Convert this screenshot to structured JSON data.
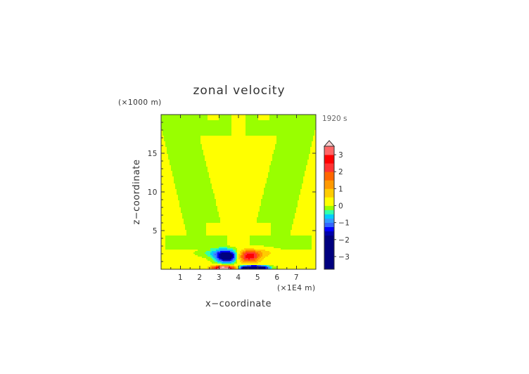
{
  "chart_data": {
    "type": "heatmap",
    "title": "zonal velocity",
    "xlabel": "x−coordinate",
    "ylabel": "z−coordinate",
    "x_unit": "(×1E4 m)",
    "y_unit": "(×1000 m)",
    "time_label": "1920 s",
    "xlim": [
      0,
      8
    ],
    "ylim": [
      0,
      20
    ],
    "x_ticks": [
      1,
      2,
      3,
      4,
      5,
      6,
      7
    ],
    "y_ticks": [
      5,
      10,
      15
    ],
    "colorbar": {
      "levels": [
        -3.75,
        -3.5,
        -3.25,
        -3,
        -2.75,
        -2.5,
        -2.25,
        -2,
        -1.75,
        -1.5,
        -1.25,
        -1,
        -0.75,
        -0.5,
        -0.25,
        0,
        0.25,
        0.5,
        0.75,
        1,
        1.25,
        1.5,
        1.75,
        2,
        2.25,
        2.5,
        2.75,
        3,
        3.25,
        3.5
      ],
      "tick_labels": [
        3,
        2,
        1,
        0,
        -1,
        -2,
        -3
      ],
      "extend": "max"
    },
    "colors": {
      "positive_bands": [
        "#ffff00",
        "#ffcc00",
        "#ff9900",
        "#ff6600",
        "#ff3333",
        "#ff0000",
        "#ff6666",
        "#ffaaaa"
      ],
      "negative_bands": [
        "#99ff00",
        "#33ffaa",
        "#00ccff",
        "#3399ff",
        "#3366ff",
        "#0000ff",
        "#0000aa",
        "#00007f"
      ]
    },
    "fields": [
      {
        "feature": "background",
        "value": 0.1
      },
      {
        "feature": "upper-level yellow plumes",
        "value": -0.05,
        "x_range": [
          0.5,
          7.5
        ],
        "z_range": [
          4,
          20
        ]
      },
      {
        "feature": "low-level negative jet",
        "x_range": [
          2.8,
          4.0
        ],
        "z_range": [
          0.5,
          2.5
        ],
        "value_min": -2.0
      },
      {
        "feature": "low-level positive jet",
        "x_range": [
          4.0,
          5.2
        ],
        "z_range": [
          0.5,
          2.5
        ],
        "value_max": 2.0
      },
      {
        "feature": "surface positive core",
        "x_range": [
          2.8,
          3.8
        ],
        "z_range": [
          0,
          0.5
        ],
        "value_max": 3.0
      },
      {
        "feature": "surface negative core",
        "x_range": [
          4.0,
          5.3
        ],
        "z_range": [
          0,
          0.5
        ],
        "value_min": -3.5
      }
    ]
  }
}
